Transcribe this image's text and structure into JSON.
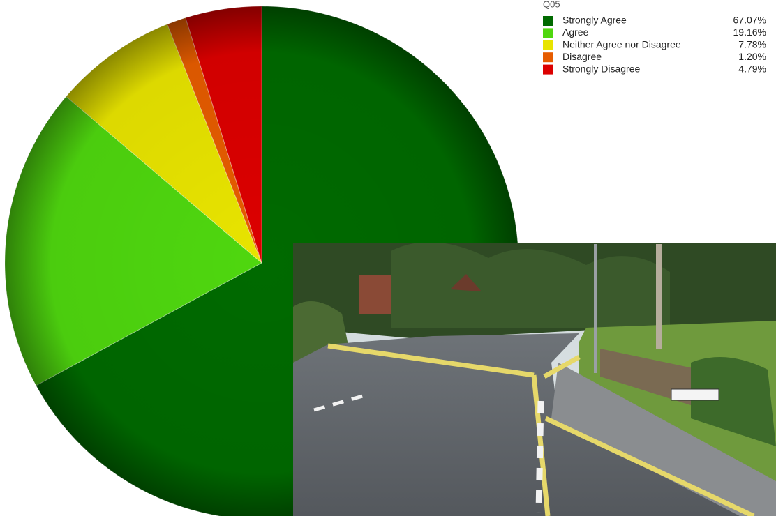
{
  "chart_data": {
    "type": "pie",
    "legend_title": "Q05",
    "categories": [
      "Strongly Agree",
      "Agree",
      "Neither Agree nor Disagree",
      "Disagree",
      "Strongly Disagree"
    ],
    "values": [
      67.07,
      19.16,
      7.78,
      1.2,
      4.79
    ],
    "value_labels": [
      "67.07%",
      "19.16%",
      "7.78%",
      "1.20%",
      "4.79%"
    ],
    "colors": [
      "#006a00",
      "#4fd70f",
      "#e8e400",
      "#e65c00",
      "#dc0000"
    ],
    "legend": "top-right"
  }
}
